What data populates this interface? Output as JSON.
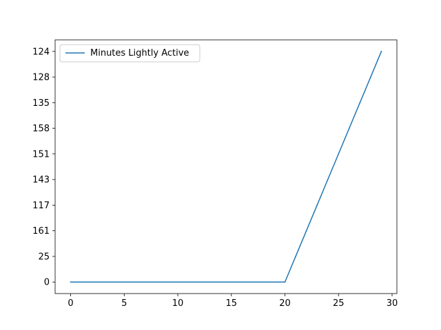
{
  "chart_data": {
    "type": "line",
    "title": "",
    "xlabel": "",
    "ylabel": "",
    "xlim": [
      -1.45,
      30.45
    ],
    "x_ticks": [
      0,
      5,
      10,
      15,
      20,
      25,
      30
    ],
    "y_category_ticks": [
      "0",
      "25",
      "161",
      "117",
      "143",
      "151",
      "158",
      "135",
      "128",
      "124"
    ],
    "grid": false,
    "legend_position": "upper-left",
    "series": [
      {
        "name": "Minutes Lightly Active",
        "color": "#1f77b4",
        "x": [
          0,
          1,
          2,
          3,
          4,
          5,
          6,
          7,
          8,
          9,
          10,
          11,
          12,
          13,
          14,
          15,
          16,
          17,
          18,
          19,
          20,
          21,
          22,
          23,
          24,
          25,
          26,
          27,
          28,
          29
        ],
        "y": [
          "0",
          "0",
          "0",
          "0",
          "0",
          "0",
          "0",
          "0",
          "0",
          "0",
          "0",
          "0",
          "0",
          "0",
          "0",
          "0",
          "0",
          "0",
          "0",
          "0",
          "0",
          "25",
          "161",
          "117",
          "143",
          "151",
          "158",
          "135",
          "128",
          "124"
        ]
      }
    ]
  }
}
